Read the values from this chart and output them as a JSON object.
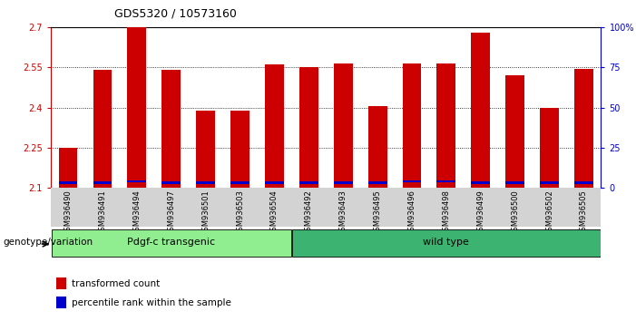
{
  "title": "GDS5320 / 10573160",
  "categories": [
    "GSM936490",
    "GSM936491",
    "GSM936494",
    "GSM936497",
    "GSM936501",
    "GSM936503",
    "GSM936504",
    "GSM936492",
    "GSM936493",
    "GSM936495",
    "GSM936496",
    "GSM936498",
    "GSM936499",
    "GSM936500",
    "GSM936502",
    "GSM936505"
  ],
  "transformed_count": [
    2.25,
    2.54,
    2.7,
    2.54,
    2.39,
    2.39,
    2.56,
    2.55,
    2.565,
    2.405,
    2.565,
    2.565,
    2.68,
    2.52,
    2.4,
    2.545
  ],
  "percentile_bottom": [
    2.115,
    2.115,
    2.12,
    2.115,
    2.115,
    2.115,
    2.115,
    2.115,
    2.115,
    2.115,
    2.12,
    2.12,
    2.115,
    2.115,
    2.115,
    2.115
  ],
  "percentile_height": [
    0.008,
    0.008,
    0.008,
    0.008,
    0.008,
    0.008,
    0.008,
    0.008,
    0.008,
    0.008,
    0.008,
    0.008,
    0.008,
    0.008,
    0.008,
    0.008
  ],
  "groups": [
    {
      "label": "Pdgf-c transgenic",
      "start": 0,
      "end": 7
    },
    {
      "label": "wild type",
      "start": 7,
      "end": 16
    }
  ],
  "group_colors": [
    "#90EE90",
    "#3CB371"
  ],
  "ylim_left": [
    2.1,
    2.7
  ],
  "ylim_right": [
    0,
    100
  ],
  "yticks_left": [
    2.1,
    2.25,
    2.4,
    2.55,
    2.7
  ],
  "yticks_right": [
    0,
    25,
    50,
    75,
    100
  ],
  "ytick_labels_right": [
    "0",
    "25",
    "50",
    "75",
    "100%"
  ],
  "bar_color": "#CC0000",
  "blue_color": "#0000CC",
  "bg_color": "#FFFFFF",
  "left_axis_color": "#CC0000",
  "right_axis_color": "#0000CC",
  "legend_items": [
    {
      "label": "transformed count",
      "color": "#CC0000"
    },
    {
      "label": "percentile rank within the sample",
      "color": "#0000CC"
    }
  ],
  "genotype_label": "genotype/variation",
  "bar_width": 0.55,
  "title_fontsize": 9,
  "axis_fontsize": 7,
  "legend_fontsize": 7.5,
  "genotype_fontsize": 7.5
}
